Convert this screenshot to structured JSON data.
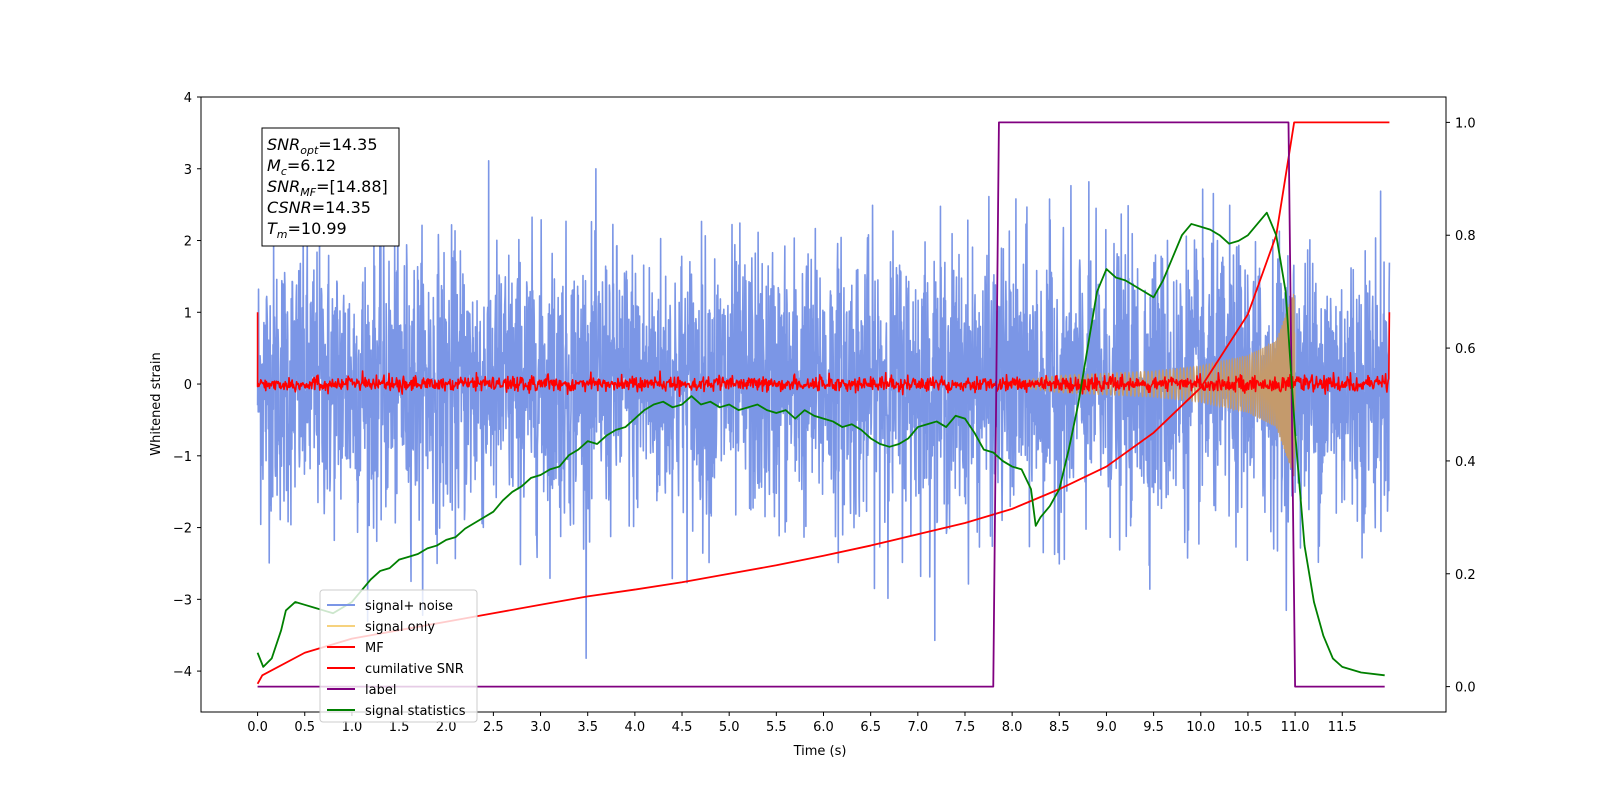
{
  "chart_data": {
    "type": "line",
    "xlabel": "Time (s)",
    "ylabel": "Whitened strain",
    "xlim": [
      -0.6,
      12.6
    ],
    "ylim_left": [
      -4.57,
      4.0
    ],
    "ylim_right": [
      -0.045,
      1.045
    ],
    "x_ticks": [
      "0.0",
      "0.5",
      "1.0",
      "1.5",
      "2.0",
      "2.5",
      "3.0",
      "3.5",
      "4.0",
      "4.5",
      "5.0",
      "5.5",
      "6.0",
      "6.5",
      "7.0",
      "7.5",
      "8.0",
      "8.5",
      "9.0",
      "9.5",
      "10.0",
      "10.5",
      "11.0",
      "11.5"
    ],
    "y_ticks_left": [
      {
        "v": 4,
        "label": "4"
      },
      {
        "v": 3,
        "label": "3"
      },
      {
        "v": 2,
        "label": "2"
      },
      {
        "v": 1,
        "label": "1"
      },
      {
        "v": 0,
        "label": "0"
      },
      {
        "v": -1,
        "label": "−1"
      },
      {
        "v": -2,
        "label": "−2"
      },
      {
        "v": -3,
        "label": "−3"
      },
      {
        "v": -4,
        "label": "−4"
      }
    ],
    "y_ticks_right": [
      "0.0",
      "0.2",
      "0.4",
      "0.6",
      "0.8",
      "1.0"
    ],
    "annotation": [
      {
        "base": "SNR",
        "sub": "opt",
        "rest": "=14.35"
      },
      {
        "base": "M",
        "sub": "c",
        "rest": "=6.12"
      },
      {
        "base": "SNR",
        "sub": "MF",
        "rest": "=[14.88]"
      },
      {
        "base": "CSNR",
        "sub": "",
        "rest": "=14.35"
      },
      {
        "base": "T",
        "sub": "m",
        "rest": "=10.99"
      }
    ],
    "legend": [
      {
        "name": "signal+ noise",
        "color": "#7b96e6"
      },
      {
        "name": "signal only",
        "color": "#f6d27e"
      },
      {
        "name": "MF",
        "color": "#ff0000"
      },
      {
        "name": "cumilative SNR",
        "color": "#ff0000"
      },
      {
        "name": "label",
        "color": "#800080"
      },
      {
        "name": "signal statistics",
        "color": "#008000"
      }
    ],
    "series": [
      {
        "name": "signal+ noise",
        "axis": "left",
        "color": "#7b96e6",
        "kind": "noise",
        "t_range": [
          0.0,
          12.0
        ],
        "amplitude_sigma": 1.0
      },
      {
        "name": "signal only",
        "axis": "left",
        "color": "#c49a6c",
        "envelope": [
          [
            7.8,
            0.0
          ],
          [
            8.5,
            0.12
          ],
          [
            9.5,
            0.18
          ],
          [
            10.0,
            0.25
          ],
          [
            10.5,
            0.4
          ],
          [
            10.8,
            0.6
          ],
          [
            10.99,
            1.3
          ],
          [
            11.0,
            0.0
          ]
        ]
      },
      {
        "name": "MF",
        "axis": "left",
        "color": "#ff0000",
        "t_range": [
          0.0,
          12.0
        ],
        "level": 0.0,
        "edge_value": 1.0
      },
      {
        "name": "cumilative SNR",
        "axis": "right",
        "color": "#ff0000",
        "points": [
          [
            0.0,
            0.005
          ],
          [
            0.05,
            0.02
          ],
          [
            0.5,
            0.06
          ],
          [
            1.0,
            0.085
          ],
          [
            1.5,
            0.1
          ],
          [
            2.0,
            0.115
          ],
          [
            2.5,
            0.13
          ],
          [
            3.0,
            0.145
          ],
          [
            3.5,
            0.16
          ],
          [
            4.0,
            0.172
          ],
          [
            4.5,
            0.185
          ],
          [
            5.0,
            0.2
          ],
          [
            5.5,
            0.215
          ],
          [
            6.0,
            0.232
          ],
          [
            6.5,
            0.25
          ],
          [
            7.0,
            0.27
          ],
          [
            7.5,
            0.29
          ],
          [
            8.0,
            0.315
          ],
          [
            8.5,
            0.35
          ],
          [
            9.0,
            0.39
          ],
          [
            9.5,
            0.45
          ],
          [
            10.0,
            0.53
          ],
          [
            10.5,
            0.66
          ],
          [
            10.8,
            0.8
          ],
          [
            10.99,
            1.0
          ],
          [
            12.0,
            1.0
          ]
        ]
      },
      {
        "name": "label",
        "axis": "right",
        "color": "#800080",
        "points": [
          [
            0.0,
            0.0
          ],
          [
            7.8,
            0.0
          ],
          [
            7.86,
            1.0
          ],
          [
            10.93,
            1.0
          ],
          [
            11.0,
            0.0
          ],
          [
            11.95,
            0.0
          ]
        ]
      },
      {
        "name": "signal statistics",
        "axis": "right",
        "color": "#008000",
        "points": [
          [
            0.0,
            0.06
          ],
          [
            0.06,
            0.035
          ],
          [
            0.15,
            0.05
          ],
          [
            0.25,
            0.1
          ],
          [
            0.3,
            0.135
          ],
          [
            0.4,
            0.15
          ],
          [
            0.5,
            0.145
          ],
          [
            0.6,
            0.14
          ],
          [
            0.7,
            0.135
          ],
          [
            0.8,
            0.13
          ],
          [
            0.9,
            0.14
          ],
          [
            1.0,
            0.15
          ],
          [
            1.1,
            0.17
          ],
          [
            1.2,
            0.19
          ],
          [
            1.3,
            0.205
          ],
          [
            1.4,
            0.21
          ],
          [
            1.5,
            0.225
          ],
          [
            1.6,
            0.23
          ],
          [
            1.7,
            0.235
          ],
          [
            1.8,
            0.245
          ],
          [
            1.9,
            0.25
          ],
          [
            2.0,
            0.26
          ],
          [
            2.1,
            0.265
          ],
          [
            2.2,
            0.28
          ],
          [
            2.3,
            0.29
          ],
          [
            2.4,
            0.3
          ],
          [
            2.5,
            0.31
          ],
          [
            2.6,
            0.33
          ],
          [
            2.7,
            0.345
          ],
          [
            2.8,
            0.355
          ],
          [
            2.9,
            0.37
          ],
          [
            3.0,
            0.375
          ],
          [
            3.1,
            0.385
          ],
          [
            3.2,
            0.39
          ],
          [
            3.3,
            0.41
          ],
          [
            3.4,
            0.42
          ],
          [
            3.5,
            0.435
          ],
          [
            3.6,
            0.43
          ],
          [
            3.7,
            0.445
          ],
          [
            3.8,
            0.455
          ],
          [
            3.9,
            0.46
          ],
          [
            4.0,
            0.475
          ],
          [
            4.1,
            0.49
          ],
          [
            4.2,
            0.5
          ],
          [
            4.3,
            0.505
          ],
          [
            4.4,
            0.495
          ],
          [
            4.5,
            0.5
          ],
          [
            4.6,
            0.515
          ],
          [
            4.7,
            0.5
          ],
          [
            4.8,
            0.505
          ],
          [
            4.9,
            0.495
          ],
          [
            5.0,
            0.5
          ],
          [
            5.1,
            0.49
          ],
          [
            5.2,
            0.495
          ],
          [
            5.3,
            0.5
          ],
          [
            5.4,
            0.49
          ],
          [
            5.5,
            0.485
          ],
          [
            5.6,
            0.49
          ],
          [
            5.7,
            0.475
          ],
          [
            5.8,
            0.49
          ],
          [
            5.9,
            0.48
          ],
          [
            6.0,
            0.475
          ],
          [
            6.1,
            0.47
          ],
          [
            6.2,
            0.46
          ],
          [
            6.3,
            0.465
          ],
          [
            6.4,
            0.455
          ],
          [
            6.5,
            0.44
          ],
          [
            6.6,
            0.43
          ],
          [
            6.7,
            0.425
          ],
          [
            6.8,
            0.43
          ],
          [
            6.9,
            0.44
          ],
          [
            7.0,
            0.46
          ],
          [
            7.1,
            0.465
          ],
          [
            7.2,
            0.47
          ],
          [
            7.3,
            0.46
          ],
          [
            7.4,
            0.48
          ],
          [
            7.5,
            0.475
          ],
          [
            7.6,
            0.45
          ],
          [
            7.7,
            0.42
          ],
          [
            7.8,
            0.415
          ],
          [
            7.9,
            0.4
          ],
          [
            8.0,
            0.39
          ],
          [
            8.1,
            0.385
          ],
          [
            8.2,
            0.35
          ],
          [
            8.25,
            0.285
          ],
          [
            8.3,
            0.3
          ],
          [
            8.4,
            0.32
          ],
          [
            8.5,
            0.35
          ],
          [
            8.6,
            0.42
          ],
          [
            8.7,
            0.5
          ],
          [
            8.8,
            0.6
          ],
          [
            8.9,
            0.7
          ],
          [
            9.0,
            0.74
          ],
          [
            9.1,
            0.725
          ],
          [
            9.2,
            0.72
          ],
          [
            9.3,
            0.71
          ],
          [
            9.4,
            0.7
          ],
          [
            9.5,
            0.69
          ],
          [
            9.6,
            0.72
          ],
          [
            9.7,
            0.76
          ],
          [
            9.8,
            0.8
          ],
          [
            9.9,
            0.82
          ],
          [
            10.0,
            0.815
          ],
          [
            10.1,
            0.81
          ],
          [
            10.2,
            0.8
          ],
          [
            10.3,
            0.785
          ],
          [
            10.4,
            0.79
          ],
          [
            10.5,
            0.8
          ],
          [
            10.6,
            0.82
          ],
          [
            10.7,
            0.84
          ],
          [
            10.8,
            0.8
          ],
          [
            10.9,
            0.7
          ],
          [
            11.0,
            0.45
          ],
          [
            11.1,
            0.25
          ],
          [
            11.2,
            0.15
          ],
          [
            11.3,
            0.09
          ],
          [
            11.4,
            0.05
          ],
          [
            11.5,
            0.035
          ],
          [
            11.7,
            0.025
          ],
          [
            11.95,
            0.02
          ]
        ]
      }
    ]
  }
}
